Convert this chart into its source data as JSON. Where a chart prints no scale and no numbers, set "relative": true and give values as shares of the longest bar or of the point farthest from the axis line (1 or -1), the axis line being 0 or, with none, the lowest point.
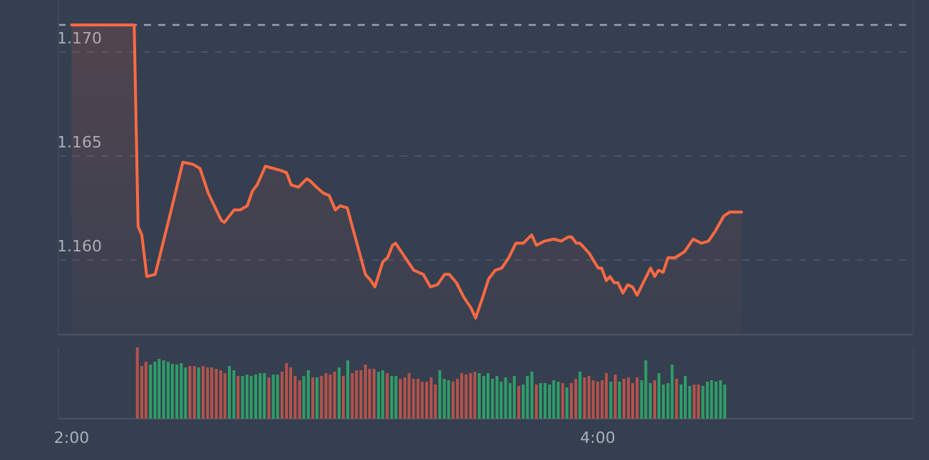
{
  "chart_data": [
    {
      "type": "area",
      "x": [
        2,
        2.238,
        2.253,
        2.267,
        2.286,
        2.318,
        2.379,
        2.423,
        2.461,
        2.488,
        2.52,
        2.569,
        2.581,
        2.618,
        2.641,
        2.668,
        2.687,
        2.705,
        2.737,
        2.768,
        2.795,
        2.817,
        2.835,
        2.863,
        2.894,
        2.907,
        2.931,
        2.958,
        2.979,
        3.003,
        3.021,
        3.048,
        3.117,
        3.138,
        3.153,
        3.183,
        3.201,
        3.22,
        3.232,
        3.274,
        3.301,
        3.337,
        3.364,
        3.391,
        3.418,
        3.436,
        3.463,
        3.491,
        3.518,
        3.536,
        3.563,
        3.586,
        3.611,
        3.635,
        3.662,
        3.689,
        3.717,
        3.749,
        3.767,
        3.798,
        3.834,
        3.861,
        3.888,
        3.901,
        3.919,
        3.933,
        3.969,
        4.002,
        4.015,
        4.033,
        4.047,
        4.063,
        4.077,
        4.096,
        4.114,
        4.132,
        4.15,
        4.177,
        4.201,
        4.217,
        4.231,
        4.249,
        4.267,
        4.294,
        4.331,
        4.363,
        4.394,
        4.421,
        4.448,
        4.479,
        4.502,
        4.547
      ],
      "series": [
        {
          "color": "#ff6a43",
          "values": [
            1.1713,
            1.1713,
            1.1616,
            1.1612,
            1.1592,
            1.1593,
            1.1624,
            1.1647,
            1.1646,
            1.1644,
            1.1632,
            1.1619,
            1.1618,
            1.1624,
            1.1624,
            1.1626,
            1.1633,
            1.1636,
            1.1645,
            1.1644,
            1.1643,
            1.1642,
            1.1636,
            1.1635,
            1.1639,
            1.1638,
            1.1635,
            1.1632,
            1.1631,
            1.1624,
            1.1626,
            1.1625,
            1.1593,
            1.159,
            1.1587,
            1.1599,
            1.1601,
            1.1607,
            1.1608,
            1.16,
            1.1595,
            1.1593,
            1.1587,
            1.1588,
            1.1593,
            1.1593,
            1.1589,
            1.1582,
            1.1577,
            1.1572,
            1.1582,
            1.1591,
            1.1595,
            1.1596,
            1.1601,
            1.1608,
            1.1608,
            1.1612,
            1.1607,
            1.1609,
            1.161,
            1.1609,
            1.1611,
            1.1611,
            1.1608,
            1.1608,
            1.1603,
            1.1596,
            1.1596,
            1.159,
            1.1592,
            1.1589,
            1.1589,
            1.1584,
            1.1588,
            1.1587,
            1.1583,
            1.159,
            1.1596,
            1.1592,
            1.1595,
            1.1594,
            1.1601,
            1.1601,
            1.1604,
            1.161,
            1.1608,
            1.1609,
            1.1614,
            1.1621,
            1.1623,
            1.1623
          ]
        }
      ],
      "xlim": [
        1.95,
        5.2
      ],
      "ylim": [
        1.1564,
        1.1725
      ],
      "yticks": [
        {
          "value": 1.16,
          "label": "1.160"
        },
        {
          "value": 1.165,
          "label": "1.165"
        },
        {
          "value": 1.17,
          "label": "1.170"
        }
      ],
      "grid": "y",
      "tick_labels": "y",
      "ref_lines": [
        {
          "axis": "y",
          "value": 1.1713,
          "color": "#9aa3b2",
          "line_style": "dashed"
        }
      ]
    },
    {
      "type": "bar",
      "relative": true,
      "tick_labels": "x",
      "xlim": [
        1.95,
        5.2
      ],
      "xticks": [
        {
          "value": 2,
          "label": "2:00"
        },
        {
          "value": 4,
          "label": "4:00"
        }
      ],
      "x": [
        2.25,
        2.267,
        2.283,
        2.3,
        2.317,
        2.333,
        2.35,
        2.367,
        2.383,
        2.4,
        2.417,
        2.433,
        2.45,
        2.467,
        2.483,
        2.5,
        2.517,
        2.533,
        2.55,
        2.567,
        2.583,
        2.6,
        2.617,
        2.633,
        2.65,
        2.667,
        2.683,
        2.7,
        2.717,
        2.733,
        2.75,
        2.767,
        2.783,
        2.8,
        2.817,
        2.833,
        2.85,
        2.867,
        2.883,
        2.9,
        2.917,
        2.933,
        2.95,
        2.967,
        2.983,
        3,
        3.017,
        3.033,
        3.05,
        3.067,
        3.083,
        3.1,
        3.117,
        3.133,
        3.15,
        3.167,
        3.183,
        3.2,
        3.217,
        3.233,
        3.25,
        3.267,
        3.283,
        3.3,
        3.317,
        3.333,
        3.35,
        3.367,
        3.383,
        3.4,
        3.417,
        3.433,
        3.45,
        3.467,
        3.483,
        3.5,
        3.517,
        3.533,
        3.55,
        3.567,
        3.583,
        3.6,
        3.617,
        3.633,
        3.65,
        3.667,
        3.683,
        3.7,
        3.717,
        3.733,
        3.75,
        3.767,
        3.783,
        3.8,
        3.817,
        3.833,
        3.85,
        3.867,
        3.883,
        3.9,
        3.917,
        3.933,
        3.95,
        3.967,
        3.983,
        4,
        4.017,
        4.033,
        4.05,
        4.067,
        4.083,
        4.1,
        4.117,
        4.133,
        4.15,
        4.167,
        4.183,
        4.2,
        4.217,
        4.233,
        4.25,
        4.267,
        4.283,
        4.3,
        4.317,
        4.333,
        4.35,
        4.367,
        4.383,
        4.4,
        4.417,
        4.433,
        4.45,
        4.467,
        4.483
      ],
      "values": [
        1,
        0.74,
        0.8,
        0.76,
        0.8,
        0.84,
        0.82,
        0.8,
        0.77,
        0.76,
        0.78,
        0.72,
        0.74,
        0.74,
        0.72,
        0.74,
        0.72,
        0.72,
        0.7,
        0.68,
        0.64,
        0.74,
        0.68,
        0.6,
        0.6,
        0.62,
        0.6,
        0.62,
        0.64,
        0.64,
        0.58,
        0.62,
        0.62,
        0.66,
        0.78,
        0.72,
        0.6,
        0.54,
        0.6,
        0.68,
        0.58,
        0.58,
        0.6,
        0.64,
        0.62,
        0.66,
        0.72,
        0.6,
        0.82,
        0.64,
        0.68,
        0.68,
        0.76,
        0.7,
        0.7,
        0.66,
        0.68,
        0.64,
        0.6,
        0.6,
        0.56,
        0.58,
        0.64,
        0.56,
        0.56,
        0.52,
        0.52,
        0.58,
        0.48,
        0.68,
        0.56,
        0.54,
        0.52,
        0.56,
        0.64,
        0.62,
        0.64,
        0.66,
        0.64,
        0.6,
        0.64,
        0.56,
        0.6,
        0.52,
        0.58,
        0.5,
        0.6,
        0.46,
        0.48,
        0.6,
        0.66,
        0.48,
        0.5,
        0.5,
        0.48,
        0.54,
        0.52,
        0.5,
        0.44,
        0.5,
        0.56,
        0.66,
        0.58,
        0.6,
        0.54,
        0.52,
        0.54,
        0.64,
        0.52,
        0.62,
        0.52,
        0.56,
        0.58,
        0.5,
        0.58,
        0.54,
        0.82,
        0.5,
        0.54,
        0.64,
        0.48,
        0.5,
        0.76,
        0.56,
        0.48,
        0.6,
        0.46,
        0.48,
        0.48,
        0.46,
        0.52,
        0.54,
        0.52,
        0.54,
        0.48
      ],
      "colors": [
        "#b4534a",
        "#b4534a",
        "#b4534a",
        "#2e9e68",
        "#2e9e68",
        "#2e9e68",
        "#2e9e68",
        "#2e9e68",
        "#2e9e68",
        "#2e9e68",
        "#2e9e68",
        "#2e9e68",
        "#b4534a",
        "#b4534a",
        "#2e9e68",
        "#b4534a",
        "#b4534a",
        "#b4534a",
        "#b4534a",
        "#b4534a",
        "#b4534a",
        "#2e9e68",
        "#2e9e68",
        "#b4534a",
        "#2e9e68",
        "#2e9e68",
        "#2e9e68",
        "#2e9e68",
        "#2e9e68",
        "#2e9e68",
        "#b4534a",
        "#2e9e68",
        "#2e9e68",
        "#b4534a",
        "#b4534a",
        "#b4534a",
        "#b4534a",
        "#b4534a",
        "#2e9e68",
        "#2e9e68",
        "#b4534a",
        "#2e9e68",
        "#b4534a",
        "#b4534a",
        "#b4534a",
        "#b4534a",
        "#2e9e68",
        "#b4534a",
        "#2e9e68",
        "#b4534a",
        "#b4534a",
        "#b4534a",
        "#b4534a",
        "#b4534a",
        "#b4534a",
        "#2e9e68",
        "#2e9e68",
        "#b4534a",
        "#2e9e68",
        "#2e9e68",
        "#b4534a",
        "#b4534a",
        "#b4534a",
        "#b4534a",
        "#b4534a",
        "#b4534a",
        "#b4534a",
        "#b4534a",
        "#b4534a",
        "#2e9e68",
        "#2e9e68",
        "#2e9e68",
        "#b4534a",
        "#b4534a",
        "#b4534a",
        "#b4534a",
        "#b4534a",
        "#b4534a",
        "#2e9e68",
        "#2e9e68",
        "#2e9e68",
        "#2e9e68",
        "#2e9e68",
        "#2e9e68",
        "#2e9e68",
        "#2e9e68",
        "#2e9e68",
        "#b4534a",
        "#2e9e68",
        "#2e9e68",
        "#2e9e68",
        "#b4534a",
        "#2e9e68",
        "#2e9e68",
        "#2e9e68",
        "#2e9e68",
        "#2e9e68",
        "#b4534a",
        "#2e9e68",
        "#b4534a",
        "#b4534a",
        "#2e9e68",
        "#b4534a",
        "#b4534a",
        "#b4534a",
        "#b4534a",
        "#b4534a",
        "#b4534a",
        "#2e9e68",
        "#b4534a",
        "#2e9e68",
        "#b4534a",
        "#b4534a",
        "#b4534a",
        "#b4534a",
        "#2e9e68",
        "#2e9e68",
        "#2e9e68",
        "#b4534a",
        "#2e9e68",
        "#2e9e68",
        "#2e9e68",
        "#2e9e68",
        "#b4534a",
        "#2e9e68",
        "#2e9e68",
        "#2e9e68",
        "#b4534a",
        "#b4534a",
        "#2e9e68",
        "#2e9e68",
        "#2e9e68",
        "#2e9e68",
        "#2e9e68",
        "#2e9e68"
      ]
    }
  ]
}
